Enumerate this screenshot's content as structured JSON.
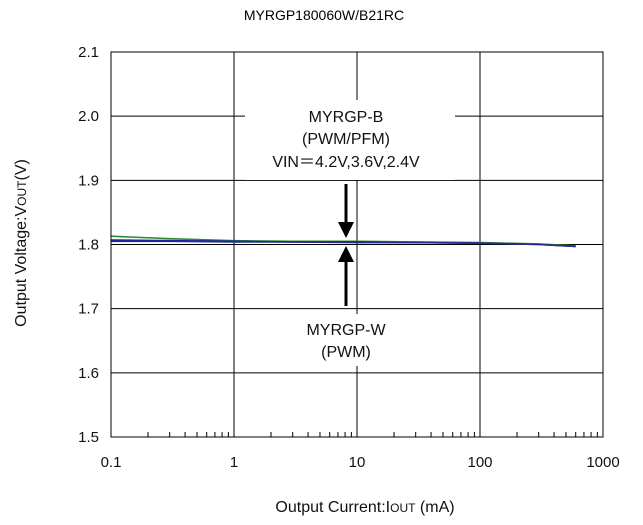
{
  "chart_data": {
    "type": "line",
    "title": "MYRGP180060W/B21RC",
    "xlabel": "Output Current:I",
    "xlabel_sub": "OUT",
    "xlabel_unit": " (mA)",
    "ylabel": "Output Voltage:V",
    "ylabel_sub": "OUT",
    "ylabel_unit": "(V)",
    "x_scale": "log",
    "xlim": [
      0.1,
      1000
    ],
    "ylim": [
      1.5,
      2.1
    ],
    "x_ticks": [
      "0.1",
      "1",
      "10",
      "100",
      "1000"
    ],
    "y_ticks": [
      "1.5",
      "1.6",
      "1.7",
      "1.8",
      "1.9",
      "2.0",
      "2.1"
    ],
    "grid": true,
    "annotations": {
      "upper_label_1": "MYRGP-B",
      "upper_label_2": "(PWM/PFM)",
      "upper_label_3": "VIN＝4.2V,3.6V,2.4V",
      "lower_label_1": "MYRGP-W",
      "lower_label_2": "(PWM)"
    },
    "series": [
      {
        "color": "#2e8b2e",
        "x": [
          0.1,
          0.3,
          1,
          3,
          10,
          30,
          100,
          300,
          600
        ],
        "y": [
          1.813,
          1.809,
          1.806,
          1.805,
          1.805,
          1.804,
          1.803,
          1.801,
          1.798
        ]
      },
      {
        "color": "#1a1ab0",
        "x": [
          0.1,
          0.3,
          1,
          3,
          10,
          30,
          100,
          300,
          600
        ],
        "y": [
          1.807,
          1.806,
          1.805,
          1.804,
          1.804,
          1.803,
          1.802,
          1.8,
          1.797
        ]
      },
      {
        "color": "#2a2a8a",
        "x": [
          0.1,
          0.3,
          1,
          3,
          10,
          30,
          100,
          300,
          600
        ],
        "y": [
          1.805,
          1.805,
          1.804,
          1.804,
          1.803,
          1.803,
          1.802,
          1.8,
          1.797
        ]
      }
    ]
  }
}
